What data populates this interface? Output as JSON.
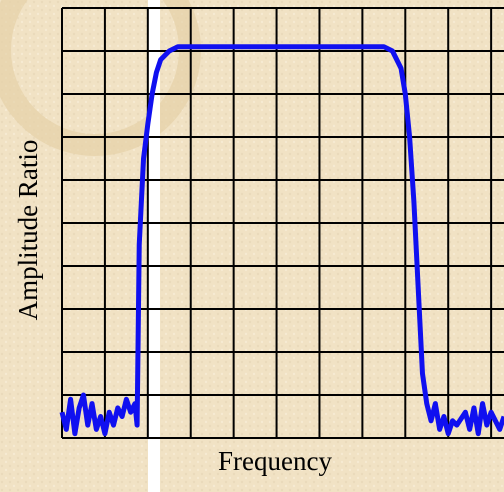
{
  "chart_data": {
    "type": "line",
    "xlabel": "Frequency",
    "ylabel": "Amplitude Ratio",
    "x": [
      0,
      0.1,
      0.2,
      0.3,
      0.4,
      0.5,
      0.6,
      0.7,
      0.8,
      0.9,
      1.0,
      1.1,
      1.2,
      1.3,
      1.4,
      1.5,
      1.6,
      1.7,
      1.75,
      1.8,
      1.9,
      2.0,
      2.1,
      2.2,
      2.3,
      2.5,
      2.7,
      3.0,
      4.0,
      5.0,
      6.0,
      7.0,
      7.5,
      7.7,
      7.9,
      8.0,
      8.1,
      8.2,
      8.3,
      8.4,
      8.5,
      8.6,
      8.7,
      8.8,
      8.9,
      9.0,
      9.1,
      9.2,
      9.4,
      9.5,
      9.6,
      9.7,
      9.8,
      9.9,
      10.0,
      10.2,
      10.3
    ],
    "series": [
      {
        "color": "#1010f0",
        "values": [
          0.6,
          0.2,
          0.9,
          0.1,
          0.7,
          1.0,
          0.3,
          0.8,
          0.2,
          0.5,
          0.1,
          0.6,
          0.3,
          0.7,
          0.5,
          0.9,
          0.6,
          0.8,
          0.3,
          4.5,
          6.5,
          7.3,
          8.0,
          8.5,
          8.8,
          9.0,
          9.1,
          9.1,
          9.1,
          9.1,
          9.1,
          9.1,
          9.1,
          9.0,
          8.6,
          8.0,
          7.0,
          5.5,
          3.5,
          1.5,
          0.8,
          0.4,
          0.8,
          0.2,
          0.5,
          0.1,
          0.4,
          0.3,
          0.6,
          0.2,
          0.7,
          0.1,
          0.8,
          0.3,
          0.6,
          0.2,
          0.5
        ]
      }
    ],
    "xlim": [
      0,
      10.3
    ],
    "ylim": [
      0,
      10
    ],
    "xticks": [
      0,
      1,
      2,
      3,
      4,
      5,
      6,
      7,
      8,
      9,
      10
    ],
    "yticks": [
      0,
      1,
      2,
      3,
      4,
      5,
      6,
      7,
      8,
      9,
      10
    ],
    "grid": true
  }
}
